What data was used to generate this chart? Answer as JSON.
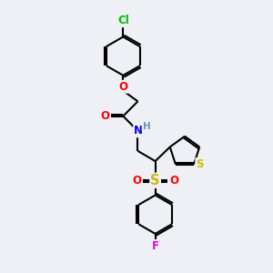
{
  "bg_color": "#eff0f5",
  "bond_color": "#000000",
  "bond_width": 1.5,
  "atom_colors": {
    "Cl": "#00bb00",
    "O": "#ff0000",
    "N": "#0000ff",
    "H": "#6699aa",
    "S_thio": "#ccbb00",
    "S_sulf": "#ccbb00",
    "F": "#ee00ee",
    "C": "#000000"
  },
  "font_size": 8.5
}
